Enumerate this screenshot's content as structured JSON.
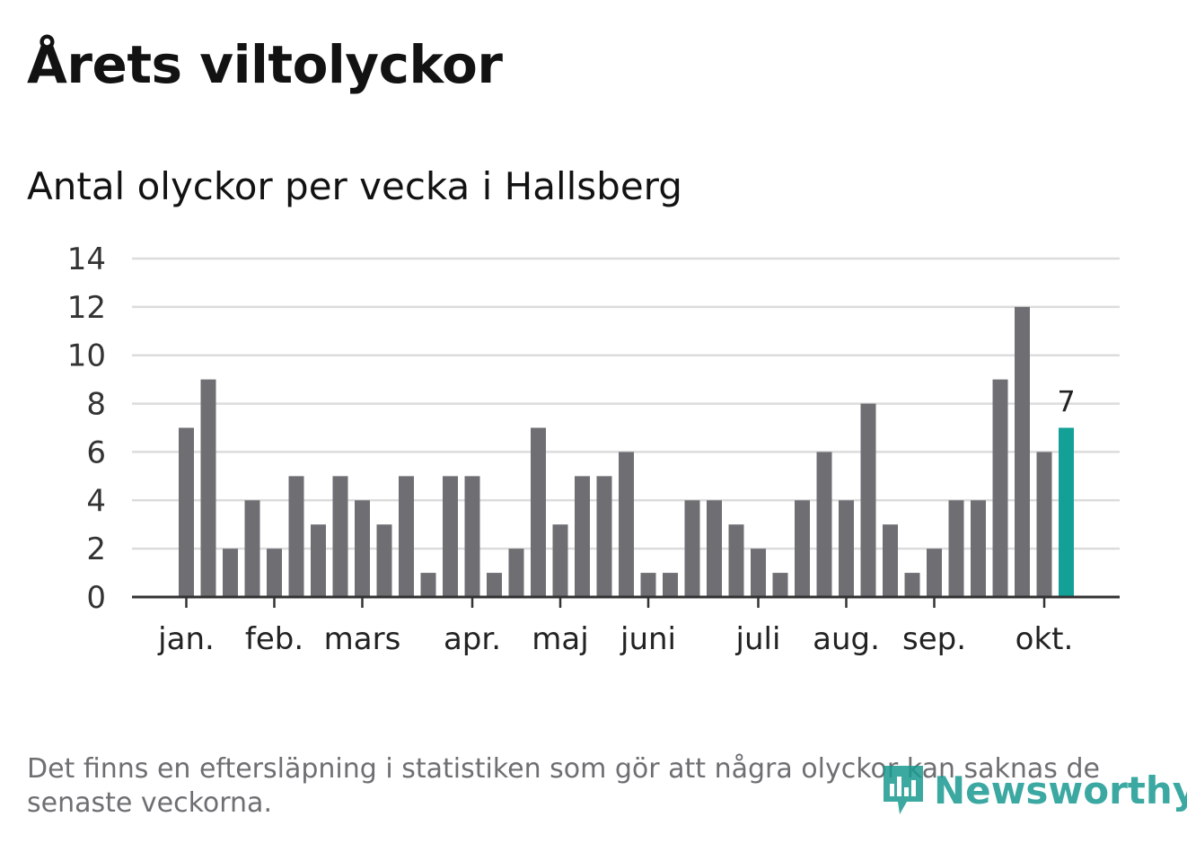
{
  "title": "Årets viltolyckor",
  "subtitle": "Antal olyckor per vecka i Hallsberg",
  "footnote": "Det finns en eftersläpning i statistiken som gör att några olyckor kan saknas de senaste veckorna.",
  "logo": {
    "text": "Newsworthy",
    "icon": "newsworthy-bar-chart-icon",
    "color": "#1a9a91"
  },
  "colors": {
    "bar": "#6f6e73",
    "highlight": "#12a097",
    "grid": "#dcdcdc",
    "axis": "#333333"
  },
  "chart_data": {
    "type": "bar",
    "title": "Antal olyckor per vecka i Hallsberg",
    "xlabel": "",
    "ylabel": "",
    "ylim": [
      0,
      14
    ],
    "yticks": [
      0,
      2,
      4,
      6,
      8,
      10,
      12,
      14
    ],
    "weeks": [
      1,
      2,
      3,
      4,
      5,
      6,
      7,
      8,
      9,
      10,
      11,
      12,
      13,
      14,
      15,
      16,
      17,
      18,
      19,
      20,
      21,
      22,
      23,
      24,
      25,
      26,
      27,
      28,
      29,
      30,
      31,
      32,
      33,
      34,
      35,
      36,
      37,
      38,
      39,
      40,
      41
    ],
    "values": [
      7,
      9,
      2,
      4,
      2,
      5,
      3,
      5,
      4,
      3,
      5,
      1,
      5,
      5,
      1,
      2,
      7,
      3,
      5,
      5,
      6,
      1,
      1,
      4,
      4,
      3,
      2,
      1,
      4,
      6,
      4,
      8,
      3,
      1,
      2,
      4,
      4,
      9,
      12,
      6,
      7
    ],
    "highlight_index": 40,
    "highlight_label": "7",
    "month_ticks": [
      {
        "label": "jan.",
        "week": 1
      },
      {
        "label": "feb.",
        "week": 5
      },
      {
        "label": "mars",
        "week": 9
      },
      {
        "label": "apr.",
        "week": 14
      },
      {
        "label": "maj",
        "week": 18
      },
      {
        "label": "juni",
        "week": 22
      },
      {
        "label": "juli",
        "week": 27
      },
      {
        "label": "aug.",
        "week": 31
      },
      {
        "label": "sep.",
        "week": 35
      },
      {
        "label": "okt.",
        "week": 40
      }
    ]
  }
}
